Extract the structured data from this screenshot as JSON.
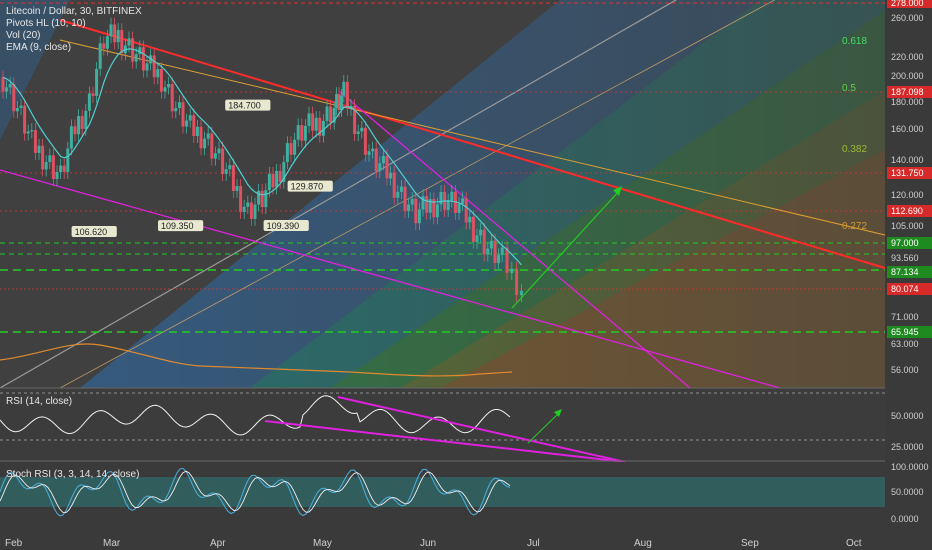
{
  "header": {
    "symbol": "Litecoin / Dollar, 30, BITFINEX",
    "indicators": [
      "Pivots HL (10, 10)",
      "Vol (20)",
      "EMA (9, close)"
    ]
  },
  "rsi_label": "RSI (14, close)",
  "stoch_label": "Stoch RSI (3, 3, 14, 14, close)",
  "colors": {
    "background": "#3f3f3f",
    "up": "#3fb0a0",
    "down": "#e05060",
    "trend_red": "#ff2a2a",
    "magenta": "#e020e0",
    "green_dash": "#22cc22",
    "ema": "#4fd0d0",
    "vol_line": "#e08a30"
  },
  "chart_data": [
    {
      "type": "line",
      "title": "Litecoin / Dollar, 30, BITFINEX",
      "scale": "log",
      "price_axis_labels": [
        "278.000",
        "260.000",
        "220.000",
        "200.000",
        "180.000",
        "160.000",
        "140.000",
        "120.000",
        "105.000",
        "93.560",
        "71.000",
        "63.000",
        "56.000"
      ],
      "x_tick_labels": [
        "Feb",
        "Mar",
        "Apr",
        "May",
        "Jun",
        "Jul",
        "Aug",
        "Sep",
        "Oct"
      ],
      "highlighted_levels": [
        {
          "value": "278.000",
          "color": "#e03030"
        },
        {
          "value": "187.098",
          "color": "#e03030"
        },
        {
          "value": "131.750",
          "color": "#e03030"
        },
        {
          "value": "112.690",
          "color": "#e03030"
        },
        {
          "value": "97.000",
          "color": "#22aa22"
        },
        {
          "value": "87.134",
          "color": "#22aa22"
        },
        {
          "value": "80.074",
          "color": "#e03030"
        },
        {
          "value": "65.945",
          "color": "#22aa22"
        }
      ],
      "fib_labels": [
        "0.618",
        "0.5",
        "0.382",
        "0.272"
      ],
      "pivot_labels": [
        {
          "text": "106.620",
          "x": 1.9,
          "y": 106.6
        },
        {
          "text": "109.350",
          "x": 3.7,
          "y": 109.35
        },
        {
          "text": "184.700",
          "x": 5.1,
          "y": 184.7
        },
        {
          "text": "129.870",
          "x": 6.4,
          "y": 129.87
        },
        {
          "text": "109.390",
          "x": 5.9,
          "y": 109.39
        }
      ],
      "series": [
        {
          "values": [
            [
              0.0,
              200
            ],
            [
              0.3,
              175
            ],
            [
              0.6,
              150
            ],
            [
              0.9,
              140
            ],
            [
              1.2,
              130
            ],
            [
              1.5,
              160
            ],
            [
              1.8,
              180
            ],
            [
              2.1,
              235
            ],
            [
              2.4,
              240
            ],
            [
              2.7,
              225
            ],
            [
              3.0,
              210
            ],
            [
              3.3,
              200
            ],
            [
              3.6,
              175
            ],
            [
              3.9,
              160
            ],
            [
              4.2,
              155
            ],
            [
              4.5,
              140
            ],
            [
              4.8,
              125
            ],
            [
              5.1,
              112
            ],
            [
              5.4,
              118
            ],
            [
              5.7,
              130
            ],
            [
              6.0,
              150
            ],
            [
              6.3,
              160
            ],
            [
              6.6,
              165
            ],
            [
              6.9,
              175
            ],
            [
              7.1,
              185
            ],
            [
              7.4,
              160
            ],
            [
              7.7,
              140
            ],
            [
              8.0,
              132
            ],
            [
              8.3,
              120
            ],
            [
              8.6,
              110
            ],
            [
              8.9,
              115
            ],
            [
              9.2,
              118
            ],
            [
              9.5,
              114
            ],
            [
              9.8,
              104
            ],
            [
              10.1,
              95
            ],
            [
              10.4,
              90
            ],
            [
              10.8,
              80
            ]
          ]
        }
      ]
    },
    {
      "type": "line",
      "title": "RSI (14, close)",
      "y_tick_labels": [
        "50.0000",
        "25.0000"
      ]
    },
    {
      "type": "line",
      "title": "Stoch RSI (3, 3, 14, 14, close)",
      "y_tick_labels": [
        "100.0000",
        "50.0000",
        "0.0000"
      ]
    }
  ]
}
